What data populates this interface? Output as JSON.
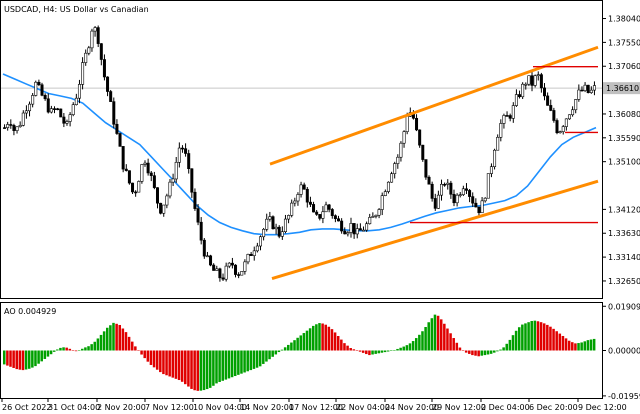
{
  "colors": {
    "candle": "#000000",
    "ma": "#1e90ff",
    "channel": "#ff8c00",
    "levels": "#e00000",
    "ao_up": "#00a000",
    "ao_down": "#e00000",
    "price_tag_bg": "#c0c0c0",
    "grid_line": "#c8c8c8"
  },
  "chart_data": [
    {
      "type": "candlestick",
      "title": "USDCAD, H4:  US Dollar vs Canadian",
      "ylim": [
        1.323,
        1.384
      ],
      "price_ticks": [
        "1.38040",
        "1.37550",
        "1.37060",
        "1.36570",
        "1.36080",
        "1.35590",
        "1.35100",
        "1.34120",
        "1.33630",
        "1.33140",
        "1.32650"
      ],
      "current_price": "1.36610",
      "x_ticks": [
        "26 Oct 2022",
        "31 Oct 04:00",
        "2 Nov 20:00",
        "7 Nov 12:00",
        "10 Nov 04:00",
        "14 Nov 20:00",
        "17 Nov 12:00",
        "22 Nov 04:00",
        "24 Nov 20:00",
        "29 Nov 12:00",
        "2 Dec 04:00",
        "6 Dec 20:00",
        "9 Dec 12:00"
      ],
      "close_path": [
        1.358,
        1.36,
        1.357,
        1.359,
        1.362,
        1.364,
        1.367,
        1.365,
        1.363,
        1.361,
        1.362,
        1.36,
        1.358,
        1.362,
        1.365,
        1.37,
        1.374,
        1.379,
        1.377,
        1.37,
        1.365,
        1.36,
        1.355,
        1.35,
        1.347,
        1.344,
        1.348,
        1.352,
        1.349,
        1.345,
        1.341,
        1.343,
        1.346,
        1.35,
        1.355,
        1.352,
        1.346,
        1.34,
        1.335,
        1.331,
        1.329,
        1.328,
        1.327,
        1.329,
        1.33,
        1.328,
        1.329,
        1.331,
        1.333,
        1.335,
        1.337,
        1.339,
        1.338,
        1.336,
        1.338,
        1.34,
        1.343,
        1.346,
        1.345,
        1.342,
        1.339,
        1.34,
        1.342,
        1.341,
        1.339,
        1.338,
        1.337,
        1.338,
        1.336,
        1.337,
        1.338,
        1.339,
        1.341,
        1.344,
        1.347,
        1.35,
        1.352,
        1.356,
        1.362,
        1.36,
        1.355,
        1.35,
        1.346,
        1.342,
        1.344,
        1.347,
        1.345,
        1.343,
        1.345,
        1.347,
        1.344,
        1.342,
        1.341,
        1.345,
        1.35,
        1.356,
        1.359,
        1.36,
        1.361,
        1.364,
        1.366,
        1.368,
        1.367,
        1.369,
        1.365,
        1.362,
        1.36,
        1.357,
        1.359,
        1.361,
        1.363,
        1.365,
        1.366,
        1.365,
        1.366
      ],
      "ma_path": [
        1.369,
        1.368,
        1.367,
        1.366,
        1.365,
        1.3645,
        1.364,
        1.363,
        1.361,
        1.359,
        1.3575,
        1.356,
        1.3545,
        1.352,
        1.3495,
        1.347,
        1.3445,
        1.342,
        1.34,
        1.3385,
        1.3375,
        1.3368,
        1.3362,
        1.336,
        1.336,
        1.3362,
        1.3365,
        1.337,
        1.3372,
        1.3372,
        1.337,
        1.3368,
        1.3368,
        1.337,
        1.3375,
        1.3382,
        1.339,
        1.3398,
        1.3405,
        1.341,
        1.3415,
        1.3418,
        1.342,
        1.3425,
        1.343,
        1.344,
        1.346,
        1.349,
        1.352,
        1.3545,
        1.356,
        1.357,
        1.358
      ],
      "channel_upper": [
        [
          1.3505,
          1.3745
        ]
      ],
      "channel_lower": [
        [
          1.327,
          1.347
        ]
      ],
      "levels": [
        1.3705,
        1.357,
        1.3385
      ]
    },
    {
      "type": "bar",
      "title": "AO 0.004929",
      "ylim": [
        -0.0205,
        0.0205
      ],
      "y_ticks": [
        "0.019090",
        "0.000000",
        "-0.019590"
      ],
      "values": [
        -0.006,
        -0.007,
        -0.008,
        -0.0085,
        -0.008,
        -0.007,
        -0.005,
        -0.003,
        -0.001,
        0.001,
        0.0015,
        0.0005,
        -0.0005,
        0.001,
        0.002,
        0.004,
        0.007,
        0.01,
        0.012,
        0.011,
        0.008,
        0.004,
        0.0,
        -0.003,
        -0.006,
        -0.008,
        -0.01,
        -0.011,
        -0.012,
        -0.013,
        -0.015,
        -0.017,
        -0.0175,
        -0.017,
        -0.016,
        -0.014,
        -0.013,
        -0.012,
        -0.011,
        -0.01,
        -0.009,
        -0.008,
        -0.007,
        -0.005,
        -0.003,
        -0.001,
        0.001,
        0.003,
        0.005,
        0.007,
        0.009,
        0.011,
        0.012,
        0.011,
        0.009,
        0.006,
        0.003,
        0.001,
        0.0,
        -0.001,
        -0.002,
        -0.0015,
        -0.001,
        -0.0005,
        0.0,
        0.001,
        0.002,
        0.0035,
        0.006,
        0.009,
        0.013,
        0.016,
        0.013,
        0.009,
        0.005,
        0.001,
        -0.001,
        -0.002,
        -0.0025,
        -0.002,
        -0.0015,
        -0.0005,
        0.001,
        0.004,
        0.008,
        0.011,
        0.012,
        0.013,
        0.0125,
        0.0115,
        0.01,
        0.008,
        0.006,
        0.004,
        0.003,
        0.0035,
        0.0045,
        0.005
      ]
    }
  ]
}
